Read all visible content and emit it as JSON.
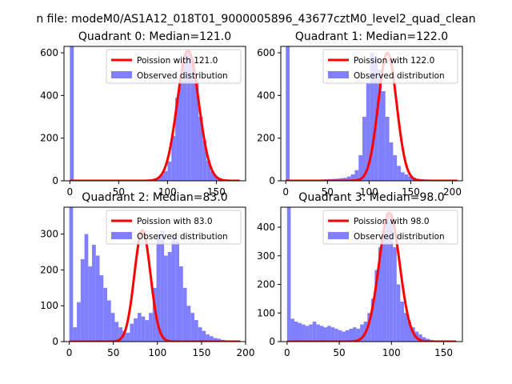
{
  "figure": {
    "suptitle": "n file: modeM0/AS1A12_018T01_9000005896_43677cztM0_level2_quad_clean"
  },
  "colors": {
    "hist": "#7f7fff",
    "poisson": "#ff0000",
    "axis": "#000000",
    "background": "#ffffff"
  },
  "chart_data": [
    {
      "type": "bar",
      "title": "Quadrant 0: Median=121.0",
      "median": 121.0,
      "xlim": [
        -6,
        180
      ],
      "ylim": [
        0,
        630
      ],
      "xticks": [
        0,
        50,
        100,
        150
      ],
      "yticks": [
        0,
        200,
        400,
        600
      ],
      "bin_width": 4,
      "bin_starts": [
        0,
        4,
        8,
        12,
        16,
        20,
        24,
        28,
        32,
        36,
        40,
        44,
        48,
        52,
        56,
        60,
        64,
        68,
        72,
        76,
        80,
        84,
        88,
        92,
        96,
        100,
        104,
        108,
        112,
        116,
        120,
        124,
        128,
        132,
        136,
        140,
        144,
        148,
        152,
        156,
        160,
        164,
        168,
        172
      ],
      "values": [
        640,
        0,
        0,
        0,
        0,
        0,
        0,
        0,
        0,
        0,
        0,
        0,
        0,
        0,
        0,
        0,
        0,
        0,
        0,
        0,
        0,
        8,
        12,
        28,
        45,
        90,
        210,
        390,
        470,
        590,
        610,
        570,
        480,
        300,
        190,
        95,
        45,
        20,
        12,
        6,
        3,
        2,
        1,
        1
      ],
      "legend": [
        "Poission with 121.0",
        "Observed distribution"
      ],
      "legend_loc": "upper right"
    },
    {
      "type": "bar",
      "title": "Quadrant 1: Median=122.0",
      "median": 122.0,
      "xlim": [
        -6,
        212
      ],
      "ylim": [
        0,
        630
      ],
      "xticks": [
        0,
        50,
        100,
        150,
        200
      ],
      "yticks": [
        0,
        200,
        400,
        600
      ],
      "bin_width": 4.6,
      "bin_starts": [
        0,
        4.6,
        9.2,
        13.8,
        18.4,
        23,
        27.6,
        32.2,
        36.8,
        41.4,
        46,
        50.6,
        55.2,
        59.8,
        64.4,
        69,
        73.6,
        78.2,
        82.8,
        87.4,
        92,
        96.6,
        101.2,
        105.8,
        110.4,
        115,
        119.6,
        124.2,
        128.8,
        133.4,
        138,
        142.6,
        147.2,
        151.8,
        156.4,
        161,
        165.6,
        170.2,
        174.8,
        179.4,
        184,
        188.6,
        193.2,
        197.8
      ],
      "values": [
        630,
        2,
        3,
        3,
        4,
        5,
        5,
        4,
        5,
        6,
        7,
        8,
        9,
        10,
        12,
        14,
        20,
        30,
        50,
        120,
        300,
        460,
        600,
        580,
        520,
        420,
        300,
        180,
        120,
        70,
        40,
        30,
        20,
        14,
        10,
        8,
        7,
        6,
        5,
        4,
        3,
        2,
        2,
        1
      ],
      "legend": [
        "Poission with 122.0",
        "Observed distribution"
      ],
      "legend_loc": "upper right"
    },
    {
      "type": "bar",
      "title": "Quadrant 2: Median=83.0",
      "median": 83.0,
      "xlim": [
        -6,
        200
      ],
      "ylim": [
        0,
        375
      ],
      "xticks": [
        0,
        50,
        100,
        150,
        200
      ],
      "yticks": [
        0,
        100,
        200,
        300
      ],
      "bin_width": 4.3,
      "bin_starts": [
        0,
        4.3,
        8.6,
        12.9,
        17.2,
        21.5,
        25.8,
        30.1,
        34.4,
        38.7,
        43,
        47.3,
        51.6,
        55.9,
        60.2,
        64.5,
        68.8,
        73.1,
        77.4,
        81.7,
        86,
        90.3,
        94.6,
        98.9,
        103.2,
        107.5,
        111.8,
        116.1,
        120.4,
        124.7,
        129,
        133.3,
        137.6,
        141.9,
        146.2,
        150.5,
        154.8,
        159.1,
        163.4,
        167.7,
        172,
        176.3,
        180.6,
        184.9
      ],
      "values": [
        380,
        40,
        110,
        230,
        300,
        210,
        270,
        240,
        185,
        150,
        115,
        80,
        55,
        40,
        30,
        25,
        50,
        65,
        80,
        70,
        60,
        80,
        150,
        300,
        310,
        240,
        250,
        300,
        280,
        210,
        150,
        100,
        80,
        60,
        40,
        30,
        20,
        15,
        10,
        8,
        5,
        3,
        2,
        1
      ],
      "legend": [
        "Poission with 83.0",
        "Observed distribution"
      ],
      "legend_loc": "upper right"
    },
    {
      "type": "bar",
      "title": "Quadrant 3: Median=98.0",
      "median": 98.0,
      "xlim": [
        -6,
        168
      ],
      "ylim": [
        0,
        470
      ],
      "xticks": [
        0,
        50,
        100,
        150
      ],
      "yticks": [
        0,
        100,
        200,
        300,
        400
      ],
      "bin_width": 3.5,
      "bin_starts": [
        0,
        3.5,
        7,
        10.5,
        14,
        17.5,
        21,
        24.5,
        28,
        31.5,
        35,
        38.5,
        42,
        45.5,
        49,
        52.5,
        56,
        59.5,
        63,
        66.5,
        70,
        73.5,
        77,
        80.5,
        84,
        87.5,
        91,
        94.5,
        98,
        101.5,
        105,
        108.5,
        112,
        115.5,
        119,
        122.5,
        126,
        129.5,
        133,
        136.5,
        140,
        143.5,
        147,
        150.5
      ],
      "values": [
        470,
        80,
        70,
        65,
        60,
        55,
        60,
        70,
        60,
        55,
        50,
        55,
        50,
        45,
        40,
        35,
        40,
        45,
        50,
        45,
        60,
        70,
        100,
        150,
        250,
        330,
        390,
        450,
        440,
        330,
        200,
        140,
        100,
        70,
        50,
        35,
        25,
        15,
        10,
        6,
        4,
        2,
        1,
        1
      ],
      "legend": [
        "Poission with 98.0",
        "Observed distribution"
      ],
      "legend_loc": "upper right"
    }
  ]
}
